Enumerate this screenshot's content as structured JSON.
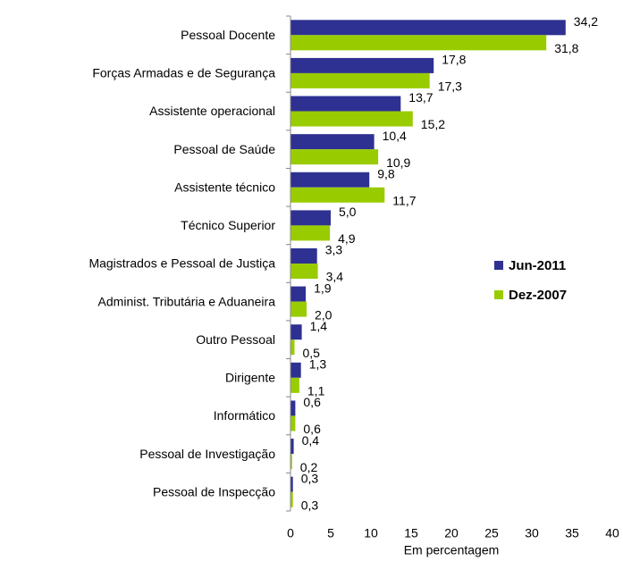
{
  "chart_data": {
    "type": "hbar",
    "xlabel": "Em percentagem",
    "categories": [
      "Pessoal Docente",
      "Forças Armadas e de Segurança",
      "Assistente operacional",
      "Pessoal de Saúde",
      "Assistente técnico",
      "Técnico Superior",
      "Magistrados e Pessoal de Justiça",
      "Administ. Tributária e Aduaneira",
      "Outro Pessoal",
      "Dirigente",
      "Informático",
      "Pessoal de Investigação",
      "Pessoal de Inspecção"
    ],
    "series": [
      {
        "name": "Jun-2011",
        "color": "#2e3192",
        "values": [
          34.2,
          17.8,
          13.7,
          10.4,
          9.8,
          5.0,
          3.3,
          1.9,
          1.4,
          1.3,
          0.6,
          0.4,
          0.3
        ],
        "value_labels": [
          "34,2",
          "17,8",
          "13,7",
          "10,4",
          "9,8",
          "5,0",
          "3,3",
          "1,9",
          "1,4",
          "1,3",
          "0,6",
          "0,4",
          "0,3"
        ]
      },
      {
        "name": "Dez-2007",
        "color": "#99cc00",
        "values": [
          31.8,
          17.3,
          15.2,
          10.9,
          11.7,
          4.9,
          3.4,
          2.0,
          0.5,
          1.1,
          0.6,
          0.2,
          0.3
        ],
        "value_labels": [
          "31,8",
          "17,3",
          "15,2",
          "10,9",
          "11,7",
          "4,9",
          "3,4",
          "2,0",
          "0,5",
          "1,1",
          "0,6",
          "0,2",
          "0,3"
        ]
      }
    ],
    "xlim": [
      0,
      40
    ],
    "xticks": [
      0,
      5,
      10,
      15,
      20,
      25,
      30,
      35,
      40
    ],
    "legend": "right"
  }
}
